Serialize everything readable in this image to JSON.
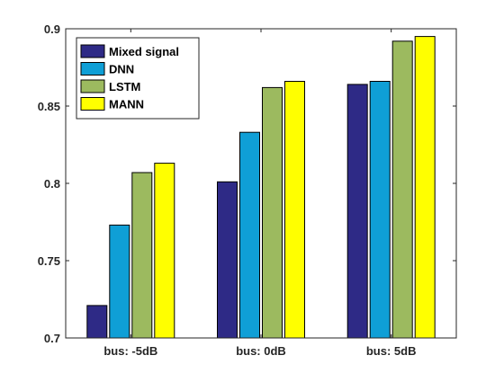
{
  "chart_data": {
    "type": "bar",
    "categories": [
      "bus: -5dB",
      "bus: 0dB",
      "bus: 5dB"
    ],
    "series": [
      {
        "name": "Mixed signal",
        "color": "#2E2A86",
        "values": [
          0.721,
          0.801,
          0.864
        ]
      },
      {
        "name": "DNN",
        "color": "#0F9FD6",
        "values": [
          0.773,
          0.833,
          0.866
        ]
      },
      {
        "name": "LSTM",
        "color": "#9CBA5F",
        "values": [
          0.807,
          0.862,
          0.892
        ]
      },
      {
        "name": "MANN",
        "color": "#FFFF00",
        "values": [
          0.813,
          0.866,
          0.895
        ]
      }
    ],
    "title": "",
    "xlabel": "",
    "ylabel": "",
    "ylim": [
      0.7,
      0.9
    ],
    "yticks": [
      "0.7",
      "0.75",
      "0.8",
      "0.85",
      "0.9"
    ],
    "grid": false,
    "legend_position": "top-left"
  }
}
